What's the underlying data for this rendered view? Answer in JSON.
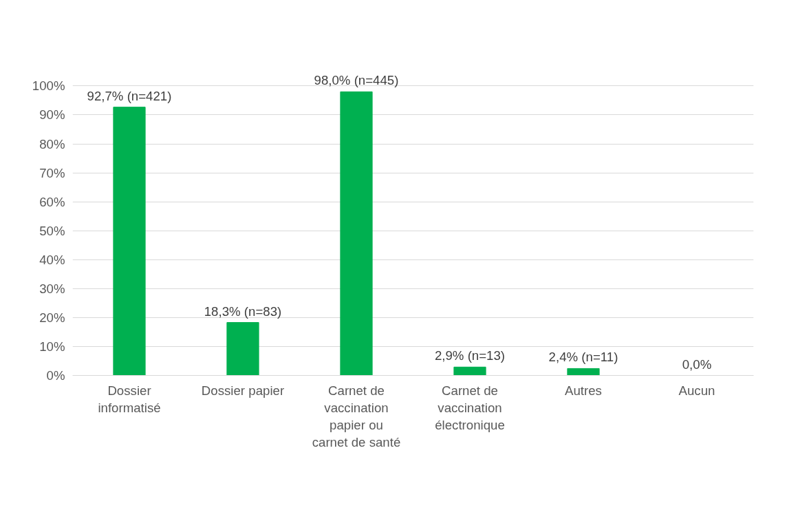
{
  "chart_data": {
    "type": "bar",
    "categories": [
      "Dossier informatisé",
      "Dossier papier",
      "Carnet de vaccination papier ou carnet de santé",
      "Carnet de vaccination électronique",
      "Autres",
      "Aucun"
    ],
    "values": [
      92.7,
      18.3,
      98.0,
      2.9,
      2.4,
      0.0
    ],
    "value_labels": [
      "92,7% (n=421)",
      "18,3% (n=83)",
      "98,0% (n=445)",
      "2,9% (n=13)",
      "2,4% (n=11)",
      "0,0%"
    ],
    "color": "#00b050",
    "ylim": [
      0,
      100
    ],
    "yticks": [
      {
        "value": 0,
        "label": "0%"
      },
      {
        "value": 10,
        "label": "10%"
      },
      {
        "value": 20,
        "label": "20%"
      },
      {
        "value": 30,
        "label": "30%"
      },
      {
        "value": 40,
        "label": "40%"
      },
      {
        "value": 50,
        "label": "50%"
      },
      {
        "value": 60,
        "label": "60%"
      },
      {
        "value": 70,
        "label": "70%"
      },
      {
        "value": 80,
        "label": "80%"
      },
      {
        "value": 90,
        "label": "90%"
      },
      {
        "value": 100,
        "label": "100%"
      }
    ],
    "grid": "y"
  }
}
